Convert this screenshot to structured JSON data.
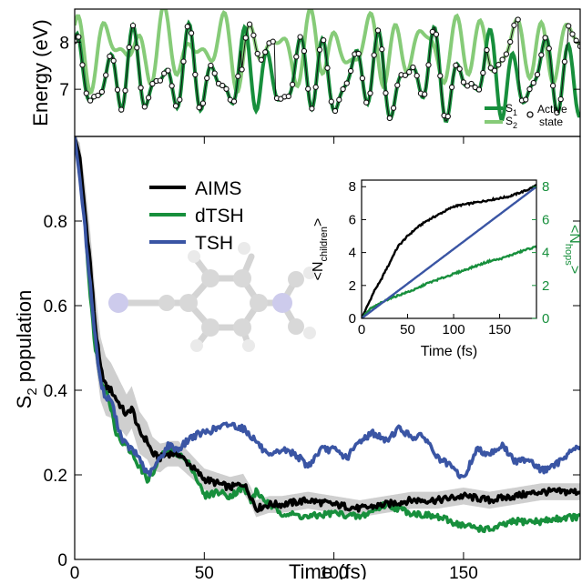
{
  "chart_data": [
    {
      "id": "energy",
      "type": "line",
      "ylabel": "Energy (eV)",
      "xlim": [
        0,
        195
      ],
      "ylim": [
        6.0,
        8.7
      ],
      "yticks": [
        7,
        8
      ],
      "ytick_labels": [
        "7",
        "8"
      ],
      "legend": {
        "position": "bottom-right",
        "s1_label": "S",
        "s1_sub": "1",
        "s2_label": "S",
        "s2_sub": "2",
        "active_line1": "Active",
        "active_line2": "state"
      },
      "colors": {
        "s1": "#178f3c",
        "s2": "#86cb78",
        "marker_edge": "#111111"
      },
      "series_params": {
        "s1": {
          "base": 7.25,
          "amps": [
            0.55,
            0.35,
            0.25
          ],
          "periods": [
            10.5,
            7.3,
            23.0
          ],
          "phases": [
            0.4,
            1.3,
            2.1
          ]
        },
        "s2": {
          "base": 7.85,
          "amps": [
            0.45,
            0.3,
            0.2
          ],
          "periods": [
            11.2,
            8.1,
            19.5
          ],
          "phases": [
            1.0,
            0.2,
            2.8
          ]
        }
      }
    },
    {
      "id": "population",
      "type": "line",
      "xlabel": "Time (fs)",
      "ylabel_main": "S",
      "ylabel_sub": "2",
      "ylabel_rest": " population",
      "xlim": [
        0,
        195
      ],
      "ylim": [
        0,
        1.0
      ],
      "xticks": [
        0,
        50,
        100,
        150
      ],
      "xtick_labels": [
        "0",
        "50",
        "100",
        "150"
      ],
      "yticks": [
        0,
        0.2,
        0.4,
        0.6,
        0.8
      ],
      "ytick_labels": [
        "0",
        "0.2",
        "0.4",
        "0.6",
        "0.8"
      ],
      "legend": {
        "position": "top-center"
      },
      "series": [
        {
          "name": "AIMS",
          "color": "#000000",
          "x": [
            0,
            2,
            4,
            6,
            8,
            10,
            12,
            14,
            16,
            18,
            20,
            22,
            25,
            28,
            30,
            33,
            36,
            40,
            45,
            50,
            55,
            60,
            65,
            68,
            70,
            75,
            80,
            90,
            100,
            110,
            120,
            130,
            140,
            150,
            160,
            170,
            180,
            190,
            195
          ],
          "y": [
            1.0,
            0.95,
            0.82,
            0.7,
            0.55,
            0.45,
            0.41,
            0.4,
            0.38,
            0.36,
            0.34,
            0.36,
            0.3,
            0.28,
            0.25,
            0.24,
            0.25,
            0.25,
            0.22,
            0.19,
            0.18,
            0.17,
            0.18,
            0.15,
            0.12,
            0.13,
            0.13,
            0.14,
            0.13,
            0.12,
            0.13,
            0.14,
            0.14,
            0.15,
            0.14,
            0.15,
            0.16,
            0.16,
            0.16
          ]
        },
        {
          "name": "dTSH",
          "color": "#178f3c",
          "x": [
            0,
            2,
            4,
            6,
            8,
            10,
            12,
            14,
            16,
            18,
            20,
            22,
            25,
            28,
            30,
            33,
            36,
            40,
            45,
            50,
            55,
            60,
            65,
            68,
            70,
            75,
            80,
            90,
            100,
            110,
            120,
            130,
            140,
            150,
            160,
            170,
            180,
            190,
            195
          ],
          "y": [
            1.0,
            0.93,
            0.8,
            0.62,
            0.5,
            0.43,
            0.4,
            0.36,
            0.3,
            0.28,
            0.27,
            0.25,
            0.22,
            0.19,
            0.2,
            0.24,
            0.26,
            0.25,
            0.22,
            0.15,
            0.16,
            0.15,
            0.17,
            0.14,
            0.16,
            0.13,
            0.11,
            0.1,
            0.11,
            0.1,
            0.13,
            0.11,
            0.1,
            0.08,
            0.07,
            0.09,
            0.09,
            0.1,
            0.1
          ]
        },
        {
          "name": "TSH",
          "color": "#3a55a4",
          "x": [
            0,
            2,
            4,
            6,
            8,
            10,
            12,
            14,
            16,
            18,
            20,
            22,
            25,
            28,
            30,
            33,
            36,
            40,
            45,
            50,
            55,
            60,
            65,
            70,
            75,
            80,
            85,
            90,
            95,
            100,
            105,
            110,
            115,
            120,
            125,
            130,
            135,
            140,
            145,
            150,
            155,
            160,
            165,
            170,
            175,
            180,
            185,
            190,
            195
          ],
          "y": [
            1.0,
            0.9,
            0.78,
            0.65,
            0.52,
            0.42,
            0.38,
            0.38,
            0.33,
            0.29,
            0.27,
            0.26,
            0.24,
            0.2,
            0.21,
            0.24,
            0.27,
            0.26,
            0.29,
            0.3,
            0.31,
            0.32,
            0.31,
            0.28,
            0.24,
            0.26,
            0.25,
            0.22,
            0.26,
            0.26,
            0.24,
            0.28,
            0.3,
            0.28,
            0.31,
            0.29,
            0.29,
            0.24,
            0.22,
            0.19,
            0.26,
            0.25,
            0.27,
            0.23,
            0.24,
            0.21,
            0.22,
            0.25,
            0.27
          ]
        }
      ],
      "band": {
        "color": "#cfcfcf",
        "x": [
          0,
          4,
          8,
          12,
          16,
          20,
          25,
          30,
          35,
          40,
          50,
          60,
          70,
          80,
          100,
          120,
          140,
          160,
          180,
          195
        ],
        "halfwidth": [
          0.0,
          0.07,
          0.08,
          0.07,
          0.06,
          0.05,
          0.05,
          0.04,
          0.03,
          0.03,
          0.025,
          0.025,
          0.02,
          0.02,
          0.02,
          0.02,
          0.02,
          0.02,
          0.02,
          0.02
        ]
      }
    },
    {
      "id": "inset",
      "type": "line",
      "xlabel": "Time (fs)",
      "ylabel_left": "<N",
      "ylabel_left_sub": "children",
      "ylabel_left_end": ">",
      "ylabel_right": "<N",
      "ylabel_right_sub": "hops",
      "ylabel_right_end": ">",
      "xlim": [
        0,
        190
      ],
      "ylim": [
        0,
        8.4
      ],
      "xticks": [
        0,
        50,
        100,
        150
      ],
      "xtick_labels": [
        "0",
        "50",
        "100",
        "150"
      ],
      "yticks": [
        0,
        2,
        4,
        6,
        8
      ],
      "ytick_labels": [
        "0",
        "2",
        "4",
        "6",
        "8"
      ],
      "right_axis_color": "#178f3c",
      "series": [
        {
          "name": "",
          "color": "#000000",
          "x": [
            0,
            5,
            10,
            15,
            20,
            25,
            30,
            35,
            40,
            50,
            60,
            70,
            80,
            90,
            100,
            110,
            120,
            130,
            140,
            150,
            160,
            170,
            180,
            190
          ],
          "y": [
            0,
            0.6,
            1.2,
            1.8,
            2.2,
            2.8,
            3.3,
            3.9,
            4.4,
            5.0,
            5.5,
            5.9,
            6.2,
            6.5,
            6.8,
            6.9,
            7.0,
            7.1,
            7.2,
            7.3,
            7.4,
            7.6,
            7.8,
            8.1
          ]
        },
        {
          "name": "",
          "color": "#178f3c",
          "x": [
            0,
            10,
            20,
            30,
            40,
            50,
            60,
            70,
            80,
            90,
            100,
            110,
            120,
            130,
            140,
            150,
            160,
            170,
            180,
            190
          ],
          "y": [
            0,
            0.6,
            0.9,
            1.2,
            1.4,
            1.6,
            1.8,
            2.1,
            2.3,
            2.5,
            2.7,
            2.9,
            3.1,
            3.3,
            3.5,
            3.6,
            3.8,
            4.0,
            4.2,
            4.35
          ]
        },
        {
          "name": "",
          "color": "#3a55a4",
          "x": [
            0,
            190
          ],
          "y": [
            0,
            8.0
          ]
        }
      ]
    }
  ],
  "legend_entries": [
    "AIMS",
    "dTSH",
    "TSH"
  ],
  "molecule_colors": {
    "carbon": "#d4d4d4",
    "hydrogen": "#e8e8e8",
    "nitrogen": "#c8c6ea",
    "bond": "#d0d0d0"
  }
}
